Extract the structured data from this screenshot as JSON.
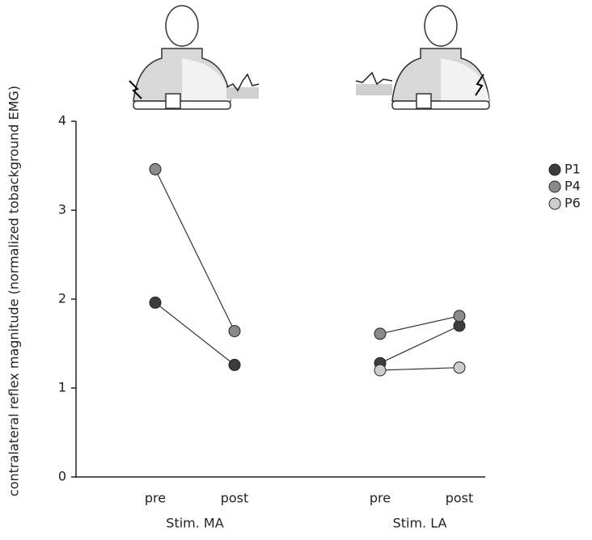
{
  "chart_data": {
    "type": "line",
    "y_label": "contralateral reflex magnitude (normalized tobackground EMG)",
    "categories": [
      "pre",
      "post",
      "pre",
      "post"
    ],
    "group_labels": [
      "Stim. MA",
      "Stim. LA"
    ],
    "series": [
      {
        "name": "P1",
        "color": "#3c3c3c",
        "values": [
          1.96,
          1.26,
          1.28,
          1.7
        ]
      },
      {
        "name": "P4",
        "color": "#8a8a8a",
        "values": [
          3.46,
          1.64,
          1.61,
          1.81
        ]
      },
      {
        "name": "P6",
        "color": "#cdcdcd",
        "values": [
          null,
          null,
          1.2,
          1.23
        ]
      }
    ],
    "ylim": [
      0,
      4
    ],
    "yticks": [
      0,
      1,
      2,
      3,
      4
    ],
    "legend": "right"
  }
}
